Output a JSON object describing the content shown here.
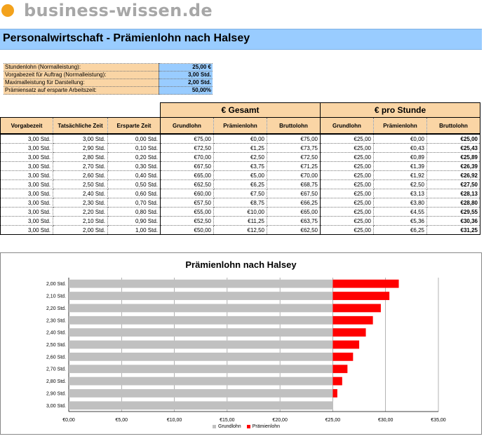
{
  "brand": {
    "name": "business-wissen.de",
    "color": "#f3a21c"
  },
  "title": "Personalwirtschaft - Prämienlohn nach Halsey",
  "params": [
    {
      "label": "Stundenlohn (Normalleistung):",
      "value": "25,00 €"
    },
    {
      "label": "Vorgabezeit für Auftrag (Normalleistung):",
      "value": "3,00 Std."
    },
    {
      "label": "Maximalleistung für Darstellung:",
      "value": "2,00 Std."
    },
    {
      "label": "Prämiensatz auf ersparte Arbeitszeit:",
      "value": "50,00%"
    }
  ],
  "table": {
    "group_gesamt": "€ Gesamt",
    "group_stunde": "€ pro Stunde",
    "columns": [
      "Vorgabezeit",
      "Tatsächliche Zeit",
      "Ersparte Zeit",
      "Grundlohn",
      "Prämienlohn",
      "Bruttolohn",
      "Grundlohn",
      "Prämienlohn",
      "Bruttolohn"
    ],
    "rows": [
      [
        "3,00 Std.",
        "3,00 Std.",
        "0,00 Std.",
        "€75,00",
        "€0,00",
        "€75,00",
        "€25,00",
        "€0,00",
        "€25,00"
      ],
      [
        "3,00 Std.",
        "2,90 Std.",
        "0,10 Std.",
        "€72,50",
        "€1,25",
        "€73,75",
        "€25,00",
        "€0,43",
        "€25,43"
      ],
      [
        "3,00 Std.",
        "2,80 Std.",
        "0,20 Std.",
        "€70,00",
        "€2,50",
        "€72,50",
        "€25,00",
        "€0,89",
        "€25,89"
      ],
      [
        "3,00 Std.",
        "2,70 Std.",
        "0,30 Std.",
        "€67,50",
        "€3,75",
        "€71,25",
        "€25,00",
        "€1,39",
        "€26,39"
      ],
      [
        "3,00 Std.",
        "2,60 Std.",
        "0,40 Std.",
        "€65,00",
        "€5,00",
        "€70,00",
        "€25,00",
        "€1,92",
        "€26,92"
      ],
      [
        "3,00 Std.",
        "2,50 Std.",
        "0,50 Std.",
        "€62,50",
        "€6,25",
        "€68,75",
        "€25,00",
        "€2,50",
        "€27,50"
      ],
      [
        "3,00 Std.",
        "2,40 Std.",
        "0,60 Std.",
        "€60,00",
        "€7,50",
        "€67,50",
        "€25,00",
        "€3,13",
        "€28,13"
      ],
      [
        "3,00 Std.",
        "2,30 Std.",
        "0,70 Std.",
        "€57,50",
        "€8,75",
        "€66,25",
        "€25,00",
        "€3,80",
        "€28,80"
      ],
      [
        "3,00 Std.",
        "2,20 Std.",
        "0,80 Std.",
        "€55,00",
        "€10,00",
        "€65,00",
        "€25,00",
        "€4,55",
        "€29,55"
      ],
      [
        "3,00 Std.",
        "2,10 Std.",
        "0,90 Std.",
        "€52,50",
        "€11,25",
        "€63,75",
        "€25,00",
        "€5,36",
        "€30,36"
      ],
      [
        "3,00 Std.",
        "2,00 Std.",
        "1,00 Std.",
        "€50,00",
        "€12,50",
        "€62,50",
        "€25,00",
        "€6,25",
        "€31,25"
      ]
    ]
  },
  "chart_data": {
    "type": "bar",
    "orientation": "horizontal",
    "stacked": true,
    "title": "Prämienlohn nach Halsey",
    "categories": [
      "3,00 Std.",
      "2,90 Std.",
      "2,80 Std.",
      "2,70 Std.",
      "2,60 Std.",
      "2,50 Std.",
      "2,40 Std.",
      "2,30 Std.",
      "2,20 Std.",
      "2,10 Std.",
      "2,00 Std."
    ],
    "series": [
      {
        "name": "Grundlohn",
        "color": "#c0c0c0",
        "values": [
          25,
          25,
          25,
          25,
          25,
          25,
          25,
          25,
          25,
          25,
          25
        ]
      },
      {
        "name": "Prämienlohn",
        "color": "#ff0000",
        "values": [
          0,
          0.43,
          0.89,
          1.39,
          1.92,
          2.5,
          3.13,
          3.8,
          4.55,
          5.36,
          6.25
        ]
      }
    ],
    "xlim": [
      0,
      35
    ],
    "xticks": [
      0,
      5,
      10,
      15,
      20,
      25,
      30,
      35
    ],
    "xtick_labels": [
      "€0,00",
      "€5,00",
      "€10,00",
      "€15,00",
      "€20,00",
      "€25,00",
      "€30,00",
      "€35,00"
    ],
    "grid": "vertical",
    "legend": "bottom"
  }
}
